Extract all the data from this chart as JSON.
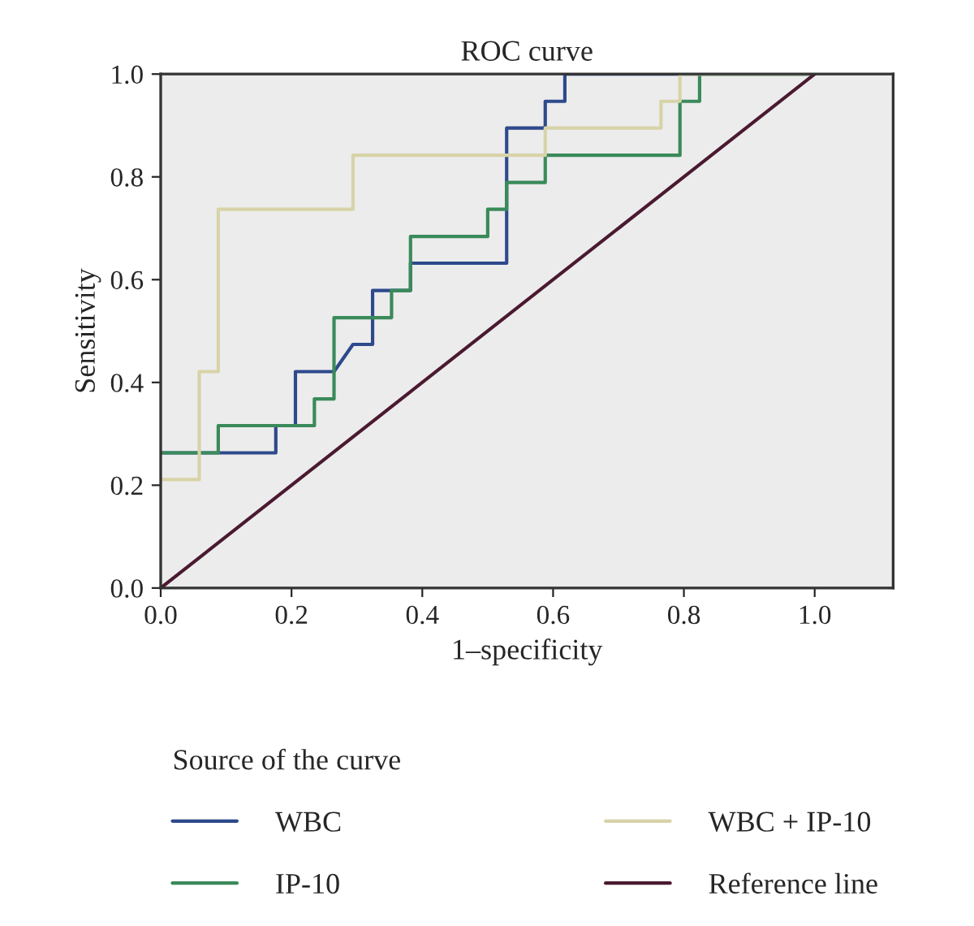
{
  "chart_data": {
    "type": "line",
    "title": "ROC curve",
    "xlabel": "1–specificity",
    "ylabel": "Sensitivity",
    "legend_title": "Source of the curve",
    "xlim": [
      0,
      1.12
    ],
    "ylim": [
      0,
      1
    ],
    "xticks": [
      {
        "value": 0,
        "label": "0.0"
      },
      0.2,
      0.4,
      0.6,
      0.8,
      {
        "value": 1,
        "label": "1.0"
      }
    ],
    "yticks": [
      {
        "value": 0,
        "label": "0.0"
      },
      0.2,
      0.4,
      0.6,
      0.8,
      {
        "value": 1,
        "label": "1.0"
      }
    ],
    "grid": false,
    "legend": "bottom",
    "marker": "none",
    "line_style": "solid",
    "series": [
      {
        "name": "WBC",
        "color": "#2e4a8c",
        "x": [
          0,
          0.176,
          0.176,
          0.206,
          0.206,
          0.265,
          0.294,
          0.324,
          0.324,
          0.382,
          0.382,
          0.529,
          0.529,
          0.588,
          0.588,
          0.618,
          0.618,
          1
        ],
        "values": [
          0.263,
          0.263,
          0.316,
          0.316,
          0.421,
          0.421,
          0.474,
          0.474,
          0.579,
          0.579,
          0.632,
          0.632,
          0.895,
          0.895,
          0.947,
          0.947,
          1,
          1
        ]
      },
      {
        "name": "IP-10",
        "color": "#3a8a5a",
        "x": [
          0,
          0.088,
          0.088,
          0.235,
          0.235,
          0.265,
          0.265,
          0.353,
          0.353,
          0.382,
          0.382,
          0.5,
          0.5,
          0.529,
          0.529,
          0.588,
          0.588,
          0.794,
          0.794,
          0.824,
          0.824,
          1
        ],
        "values": [
          0.263,
          0.263,
          0.316,
          0.316,
          0.368,
          0.368,
          0.526,
          0.526,
          0.579,
          0.579,
          0.684,
          0.684,
          0.737,
          0.737,
          0.789,
          0.789,
          0.842,
          0.842,
          0.947,
          0.947,
          1,
          1
        ]
      },
      {
        "name": "WBC + IP-10",
        "color": "#d8d3a8",
        "x": [
          0,
          0.059,
          0.059,
          0.088,
          0.088,
          0.294,
          0.294,
          0.588,
          0.588,
          0.765,
          0.765,
          0.794,
          0.794,
          1
        ],
        "values": [
          0.211,
          0.211,
          0.421,
          0.421,
          0.737,
          0.737,
          0.842,
          0.842,
          0.895,
          0.895,
          0.947,
          0.947,
          1,
          1
        ]
      },
      {
        "name": "Reference line",
        "color": "#4a1a30",
        "x": [
          0,
          1
        ],
        "values": [
          0,
          1
        ]
      }
    ]
  }
}
